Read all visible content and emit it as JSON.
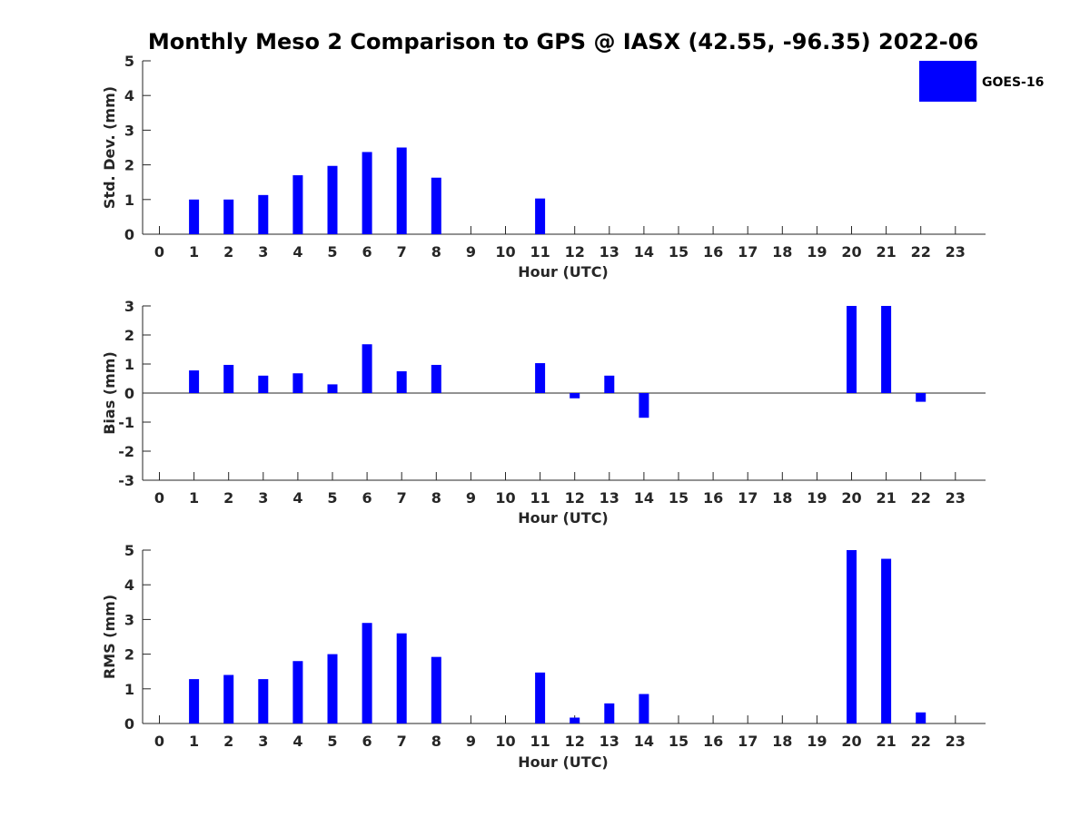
{
  "figure": {
    "title": "Monthly Meso 2 Comparison to GPS @ IASX (42.55, -96.35) 2022-06"
  },
  "legend": {
    "label": "GOES-16",
    "color": "#0000ff",
    "placement": "top-right"
  },
  "chart_data": [
    {
      "type": "bar",
      "xlabel": "Hour (UTC)",
      "ylabel": "Std. Dev. (mm)",
      "ylim": [
        0,
        5
      ],
      "yticks": [
        0,
        1,
        2,
        3,
        4,
        5
      ],
      "categories": [
        0,
        1,
        2,
        3,
        4,
        5,
        6,
        7,
        8,
        9,
        10,
        11,
        12,
        13,
        14,
        15,
        16,
        17,
        18,
        19,
        20,
        21,
        22,
        23
      ],
      "series": [
        {
          "name": "GOES-16",
          "color": "#0000ff",
          "values": [
            null,
            1.0,
            1.0,
            1.13,
            1.7,
            1.97,
            2.37,
            2.5,
            1.63,
            null,
            null,
            1.03,
            null,
            null,
            null,
            null,
            null,
            null,
            null,
            null,
            null,
            null,
            null,
            null
          ]
        }
      ]
    },
    {
      "type": "bar",
      "xlabel": "Hour (UTC)",
      "ylabel": "Bias (mm)",
      "ylim": [
        -3,
        3
      ],
      "yticks": [
        -3,
        -2,
        -1,
        0,
        1,
        2,
        3
      ],
      "zero_line": true,
      "categories": [
        0,
        1,
        2,
        3,
        4,
        5,
        6,
        7,
        8,
        9,
        10,
        11,
        12,
        13,
        14,
        15,
        16,
        17,
        18,
        19,
        20,
        21,
        22,
        23
      ],
      "series": [
        {
          "name": "GOES-16",
          "color": "#0000ff",
          "values": [
            null,
            0.78,
            0.97,
            0.6,
            0.68,
            0.3,
            1.68,
            0.75,
            0.97,
            null,
            null,
            1.03,
            -0.18,
            0.6,
            -0.85,
            null,
            null,
            null,
            null,
            null,
            3.0,
            3.0,
            -0.3,
            null
          ]
        }
      ]
    },
    {
      "type": "bar",
      "xlabel": "Hour (UTC)",
      "ylabel": "RMS (mm)",
      "ylim": [
        0,
        5
      ],
      "yticks": [
        0,
        1,
        2,
        3,
        4,
        5
      ],
      "categories": [
        0,
        1,
        2,
        3,
        4,
        5,
        6,
        7,
        8,
        9,
        10,
        11,
        12,
        13,
        14,
        15,
        16,
        17,
        18,
        19,
        20,
        21,
        22,
        23
      ],
      "series": [
        {
          "name": "GOES-16",
          "color": "#0000ff",
          "values": [
            null,
            1.28,
            1.4,
            1.28,
            1.8,
            2.0,
            2.9,
            2.6,
            1.92,
            null,
            null,
            1.47,
            0.17,
            0.58,
            0.85,
            null,
            null,
            null,
            null,
            null,
            5.0,
            4.75,
            0.32,
            null
          ]
        }
      ]
    }
  ]
}
